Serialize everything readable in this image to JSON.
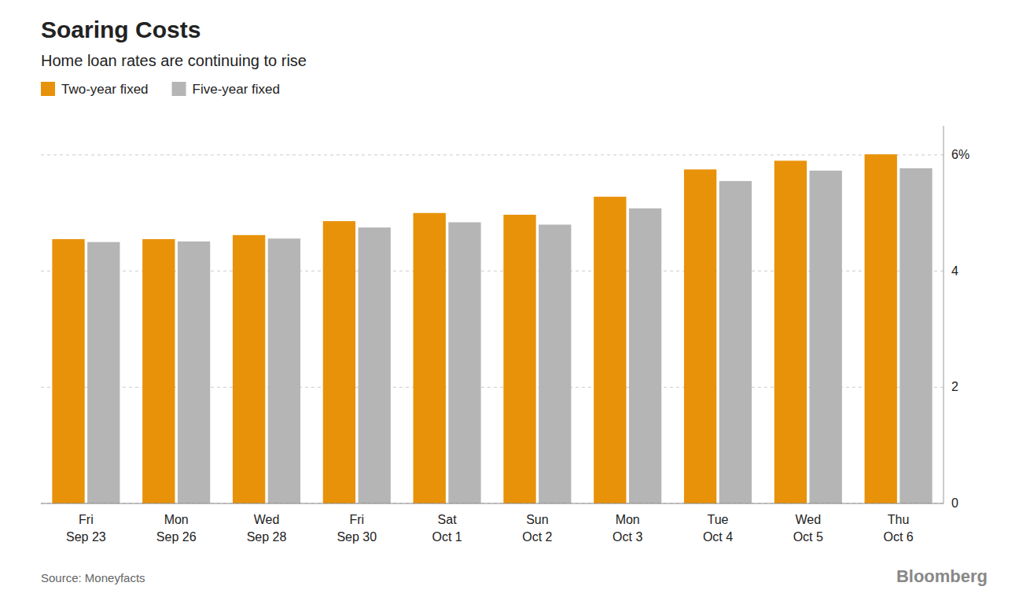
{
  "chart_data": {
    "type": "bar",
    "title": "Soaring Costs",
    "subtitle": "Home loan rates are continuing to rise",
    "source": "Source: Moneyfacts",
    "annotations": [
      "Bloomberg"
    ],
    "categories": [
      "Fri\nSep 23",
      "Mon\nSep 26",
      "Wed\nSep 28",
      "Fri\nSep 30",
      "Sat\nOct 1",
      "Sun\nOct 2",
      "Mon\nOct 3",
      "Tue\nOct 4",
      "Wed\nOct 5",
      "Thu\nOct 6"
    ],
    "series": [
      {
        "name": "Two-year fixed",
        "color": "#E8920A",
        "values": [
          4.55,
          4.55,
          4.62,
          4.86,
          5.0,
          4.97,
          5.28,
          5.75,
          5.9,
          6.01
        ]
      },
      {
        "name": "Five-year fixed",
        "color": "#B5B5B5",
        "values": [
          4.5,
          4.51,
          4.56,
          4.75,
          4.84,
          4.8,
          5.08,
          5.55,
          5.73,
          5.77
        ]
      }
    ],
    "ylim": [
      0,
      6.5
    ],
    "yticks": [
      0,
      2,
      4,
      {
        "value": 6,
        "label": "6%"
      }
    ],
    "grid": true,
    "legend": "top-left"
  }
}
